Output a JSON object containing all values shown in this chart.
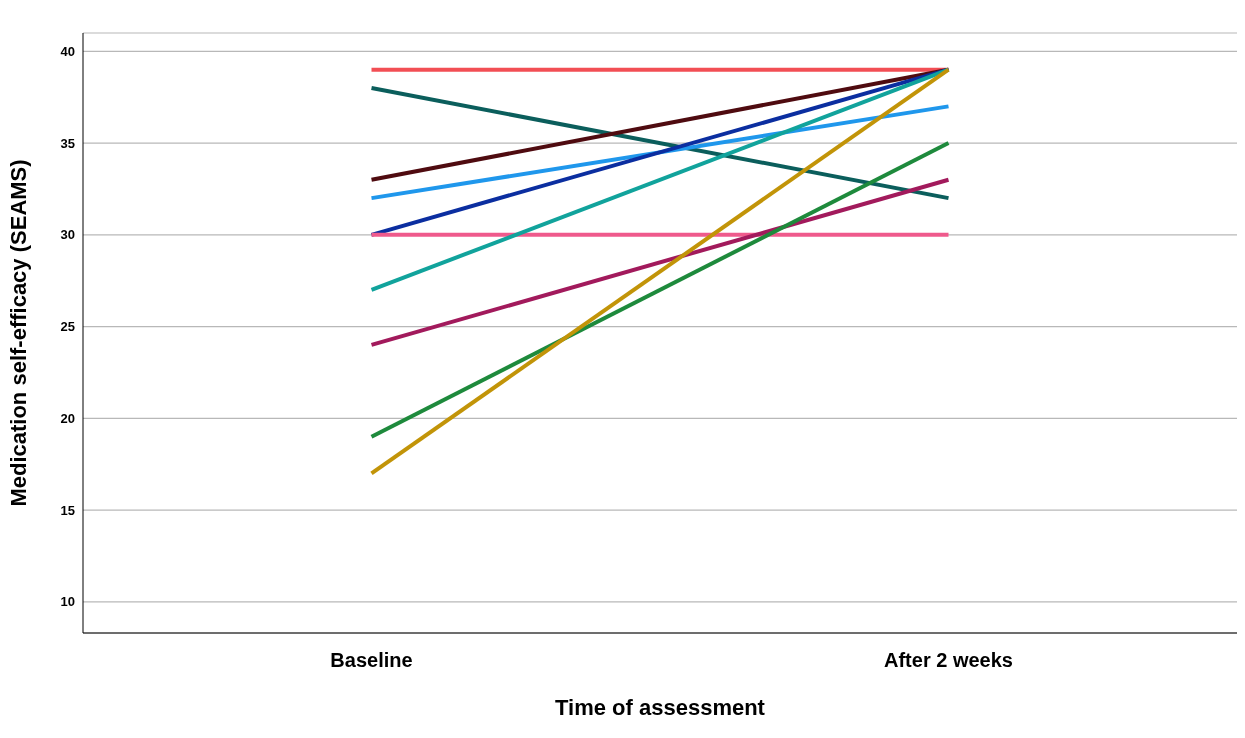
{
  "chart_data": {
    "type": "line",
    "xlabel": "Time of assessment",
    "ylabel": "Medication self-efficacy (SEAMS)",
    "categories": [
      "Baseline",
      "After 2 weeks"
    ],
    "ylim": [
      8.3,
      41
    ],
    "yticks": [
      10,
      15,
      20,
      25,
      30,
      35,
      40
    ],
    "grid": "y",
    "marker": "none",
    "line_style": "solid",
    "series": [
      {
        "color": "#f24e54",
        "values": [
          39,
          39
        ]
      },
      {
        "color": "#0b5e5c",
        "values": [
          38,
          32
        ]
      },
      {
        "color": "#4f0b10",
        "values": [
          33,
          39
        ]
      },
      {
        "color": "#1f97ec",
        "values": [
          32,
          37
        ]
      },
      {
        "color": "#0b2ea0",
        "values": [
          30,
          39
        ]
      },
      {
        "color": "#ef5a8c",
        "values": [
          30,
          30
        ]
      },
      {
        "color": "#11a39c",
        "values": [
          27,
          39
        ]
      },
      {
        "color": "#a21a5c",
        "values": [
          24,
          33
        ]
      },
      {
        "color": "#1e8a3c",
        "values": [
          19,
          35
        ]
      },
      {
        "color": "#c29408",
        "values": [
          17,
          39
        ]
      }
    ]
  }
}
